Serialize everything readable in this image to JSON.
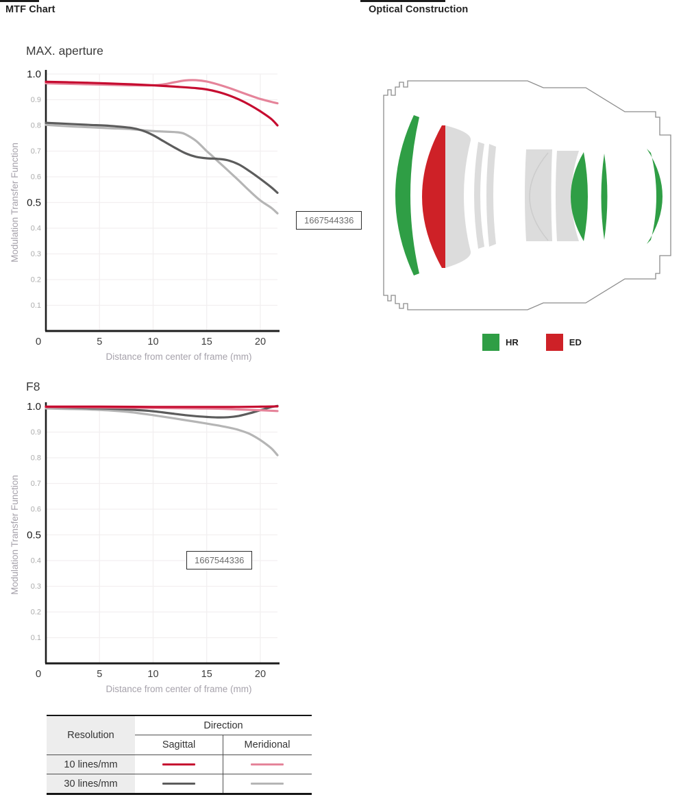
{
  "header": {
    "left_tab": "MTF Chart",
    "right_tab": "Optical Construction"
  },
  "overlay_boxes": [
    {
      "value": "1667544336"
    },
    {
      "value": "1667544336"
    }
  ],
  "chart_data": [
    {
      "type": "line",
      "title": "MAX. aperture",
      "xlabel": "Distance from center of frame (mm)",
      "ylabel": "Modulation Transfer Function",
      "xlim": [
        0,
        21.6
      ],
      "ylim": [
        0,
        1.0
      ],
      "x_ticks": [
        0,
        5,
        10,
        15,
        20
      ],
      "y_tick_step": 0.1,
      "grid": true,
      "legend_position": "none",
      "series": [
        {
          "name": "30 lines/mm Meridional",
          "color": "#b5b5b5",
          "points": [
            [
              0,
              0.802
            ],
            [
              2,
              0.797
            ],
            [
              4,
              0.793
            ],
            [
              6,
              0.789
            ],
            [
              8,
              0.785
            ],
            [
              10,
              0.778
            ],
            [
              11,
              0.776
            ],
            [
              12,
              0.774
            ],
            [
              12.5,
              0.772
            ],
            [
              13,
              0.766
            ],
            [
              14,
              0.74
            ],
            [
              15,
              0.7
            ],
            [
              15.5,
              0.682
            ],
            [
              16,
              0.662
            ],
            [
              17,
              0.624
            ],
            [
              18,
              0.585
            ],
            [
              19,
              0.545
            ],
            [
              20,
              0.508
            ],
            [
              21,
              0.48
            ],
            [
              21.6,
              0.458
            ]
          ]
        },
        {
          "name": "30 lines/mm Sagittal",
          "color": "#5c5c5c",
          "points": [
            [
              0,
              0.81
            ],
            [
              2,
              0.806
            ],
            [
              4,
              0.802
            ],
            [
              6,
              0.798
            ],
            [
              8,
              0.79
            ],
            [
              9,
              0.78
            ],
            [
              10,
              0.762
            ],
            [
              11,
              0.738
            ],
            [
              12,
              0.714
            ],
            [
              13,
              0.692
            ],
            [
              14,
              0.678
            ],
            [
              15,
              0.672
            ],
            [
              16,
              0.67
            ],
            [
              17,
              0.664
            ],
            [
              18,
              0.648
            ],
            [
              19,
              0.622
            ],
            [
              20,
              0.592
            ],
            [
              21,
              0.56
            ],
            [
              21.6,
              0.538
            ]
          ]
        },
        {
          "name": "10 lines/mm Meridional",
          "color": "#e5849a",
          "points": [
            [
              0,
              0.964
            ],
            [
              2,
              0.962
            ],
            [
              4,
              0.96
            ],
            [
              6,
              0.958
            ],
            [
              8,
              0.956
            ],
            [
              10,
              0.956
            ],
            [
              11,
              0.96
            ],
            [
              12,
              0.968
            ],
            [
              13,
              0.975
            ],
            [
              14,
              0.976
            ],
            [
              15,
              0.971
            ],
            [
              16,
              0.96
            ],
            [
              17,
              0.947
            ],
            [
              18,
              0.932
            ],
            [
              19,
              0.917
            ],
            [
              20,
              0.903
            ],
            [
              21,
              0.892
            ],
            [
              21.6,
              0.886
            ]
          ]
        },
        {
          "name": "10 lines/mm Sagittal",
          "color": "#c60c30",
          "points": [
            [
              0,
              0.97
            ],
            [
              2,
              0.968
            ],
            [
              4,
              0.966
            ],
            [
              6,
              0.963
            ],
            [
              8,
              0.96
            ],
            [
              10,
              0.956
            ],
            [
              12,
              0.951
            ],
            [
              14,
              0.945
            ],
            [
              15,
              0.94
            ],
            [
              16,
              0.931
            ],
            [
              17,
              0.918
            ],
            [
              18,
              0.901
            ],
            [
              19,
              0.88
            ],
            [
              20,
              0.855
            ],
            [
              21,
              0.826
            ],
            [
              21.6,
              0.8
            ]
          ]
        }
      ]
    },
    {
      "type": "line",
      "title": "F8",
      "xlabel": "Distance from center of frame (mm)",
      "ylabel": "Modulation Transfer Function",
      "xlim": [
        0,
        21.6
      ],
      "ylim": [
        0,
        1.0
      ],
      "x_ticks": [
        0,
        5,
        10,
        15,
        20
      ],
      "y_tick_step": 0.1,
      "grid": true,
      "legend_position": "none",
      "series": [
        {
          "name": "30 lines/mm Meridional",
          "color": "#b5b5b5",
          "points": [
            [
              0,
              0.992
            ],
            [
              2,
              0.99
            ],
            [
              4,
              0.988
            ],
            [
              6,
              0.984
            ],
            [
              8,
              0.977
            ],
            [
              10,
              0.966
            ],
            [
              12,
              0.953
            ],
            [
              14,
              0.94
            ],
            [
              15,
              0.933
            ],
            [
              16,
              0.926
            ],
            [
              17,
              0.918
            ],
            [
              18,
              0.908
            ],
            [
              19,
              0.893
            ],
            [
              20,
              0.869
            ],
            [
              21,
              0.838
            ],
            [
              21.6,
              0.81
            ]
          ]
        },
        {
          "name": "30 lines/mm Sagittal",
          "color": "#5c5c5c",
          "points": [
            [
              0,
              0.997
            ],
            [
              2,
              0.995
            ],
            [
              4,
              0.993
            ],
            [
              6,
              0.991
            ],
            [
              8,
              0.987
            ],
            [
              10,
              0.981
            ],
            [
              12,
              0.971
            ],
            [
              13,
              0.966
            ],
            [
              14,
              0.962
            ],
            [
              15,
              0.959
            ],
            [
              16,
              0.957
            ],
            [
              17,
              0.958
            ],
            [
              18,
              0.963
            ],
            [
              19,
              0.973
            ],
            [
              20,
              0.985
            ],
            [
              21,
              0.997
            ],
            [
              21.6,
              1.002
            ]
          ]
        },
        {
          "name": "10 lines/mm Meridional",
          "color": "#e5849a",
          "points": [
            [
              0,
              0.997
            ],
            [
              5,
              0.996
            ],
            [
              10,
              0.994
            ],
            [
              14,
              0.992
            ],
            [
              16,
              0.991
            ],
            [
              18,
              0.988
            ],
            [
              20,
              0.985
            ],
            [
              21.6,
              0.982
            ]
          ]
        },
        {
          "name": "10 lines/mm Sagittal",
          "color": "#c60c30",
          "points": [
            [
              0,
              0.999
            ],
            [
              5,
              0.999
            ],
            [
              10,
              0.998
            ],
            [
              15,
              0.998
            ],
            [
              18,
              0.998
            ],
            [
              20,
              0.999
            ],
            [
              21.6,
              1.0
            ]
          ]
        }
      ]
    }
  ],
  "legend_table": {
    "resolution_header": "Resolution",
    "direction_header": "Direction",
    "direction_columns": [
      "Sagittal",
      "Meridional"
    ],
    "rows": [
      {
        "resolution": "10 lines/mm",
        "sagittal_color": "#c60c30",
        "meridional_color": "#e5849a"
      },
      {
        "resolution": "30 lines/mm",
        "sagittal_color": "#5c5c5c",
        "meridional_color": "#b5b5b5"
      }
    ]
  },
  "optical": {
    "legend": [
      {
        "label": "HR",
        "color": "#2f9e45"
      },
      {
        "label": "ED",
        "color": "#ce2127"
      }
    ],
    "glass_color": "#dcdcdc",
    "outline_color": "#8c8c8c"
  }
}
